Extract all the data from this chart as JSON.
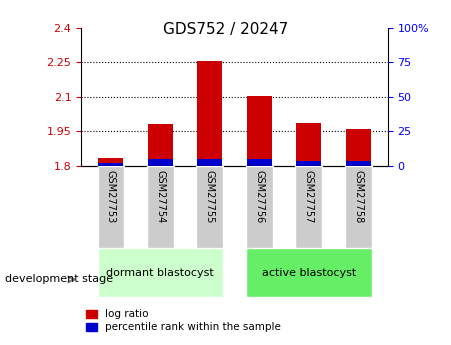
{
  "title": "GDS752 / 20247",
  "samples": [
    "GSM27753",
    "GSM27754",
    "GSM27755",
    "GSM27756",
    "GSM27757",
    "GSM27758"
  ],
  "log_ratios": [
    1.832,
    1.98,
    2.255,
    2.102,
    1.985,
    1.957
  ],
  "percentile_ranks": [
    2.0,
    5.0,
    5.0,
    5.0,
    3.0,
    3.0
  ],
  "baseline": 1.8,
  "ylim_left": [
    1.8,
    2.4
  ],
  "ylim_right": [
    0,
    100
  ],
  "yticks_left": [
    1.8,
    1.95,
    2.1,
    2.25,
    2.4
  ],
  "yticks_right": [
    0,
    25,
    50,
    75,
    100
  ],
  "ytick_labels_left": [
    "1.8",
    "1.95",
    "2.1",
    "2.25",
    "2.4"
  ],
  "ytick_labels_right": [
    "0",
    "25",
    "50",
    "75",
    "100%"
  ],
  "group1_label": "dormant blastocyst",
  "group2_label": "active blastocyst",
  "group1_indices": [
    0,
    1,
    2
  ],
  "group2_indices": [
    3,
    4,
    5
  ],
  "stage_label": "development stage",
  "legend_log_ratio": "log ratio",
  "legend_percentile": "percentile rank within the sample",
  "bar_color_red": "#cc0000",
  "bar_color_blue": "#0000cc",
  "group1_color": "#ccffcc",
  "group2_color": "#66ee66",
  "tick_bg_color": "#cccccc",
  "bar_width": 0.5
}
